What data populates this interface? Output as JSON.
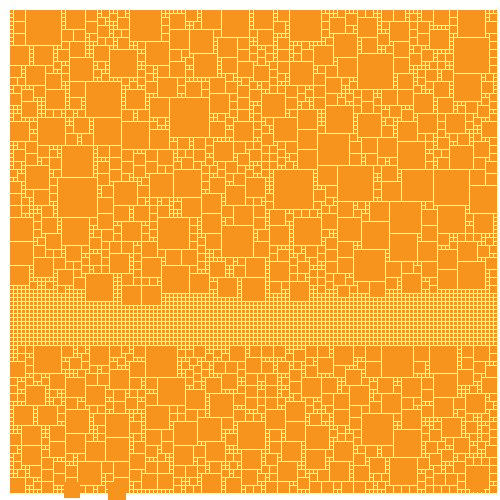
{
  "colors": {
    "background": "#ffffff",
    "tile_fill": "#f7941d"
  },
  "mosaic": {
    "description_visible_text": ""
  }
}
